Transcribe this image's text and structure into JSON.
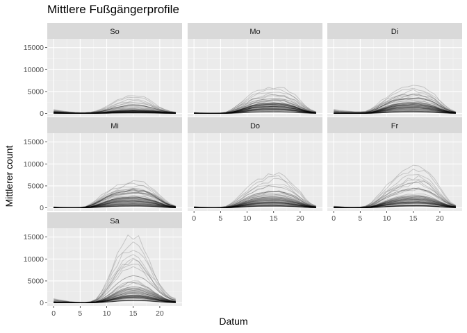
{
  "figure": {
    "title": "Mittlere Fußgängerprofile",
    "xlabel": "Datum",
    "ylabel": "Mittlerer count"
  },
  "chart_data": {
    "type": "line",
    "title": "Mittlere Fußgängerprofile",
    "xlabel": "Datum",
    "ylabel": "Mittlerer count",
    "xlim": [
      -1.2,
      24.2
    ],
    "ylim": [
      -700,
      17000
    ],
    "x_ticks": [
      0,
      5,
      10,
      15,
      20
    ],
    "y_ticks": [
      0,
      5000,
      10000,
      15000
    ],
    "y_tick_labels": [
      "0",
      "5000",
      "10000",
      "15000"
    ],
    "grid": true,
    "facet_layout": "3 columns",
    "x_hours": [
      0,
      1,
      2,
      3,
      4,
      5,
      6,
      7,
      8,
      9,
      10,
      11,
      12,
      13,
      14,
      15,
      16,
      17,
      18,
      19,
      20,
      21,
      22,
      23
    ],
    "panels": [
      {
        "name": "So",
        "median": [
          200,
          150,
          100,
          60,
          30,
          20,
          30,
          50,
          100,
          180,
          280,
          380,
          470,
          550,
          600,
          620,
          600,
          560,
          500,
          420,
          330,
          230,
          150,
          90
        ],
        "p90": [
          420,
          330,
          260,
          180,
          120,
          90,
          100,
          150,
          280,
          450,
          650,
          850,
          1050,
          1200,
          1300,
          1350,
          1300,
          1200,
          1050,
          850,
          650,
          450,
          300,
          200
        ],
        "max": [
          900,
          700,
          500,
          350,
          250,
          200,
          220,
          300,
          600,
          1000,
          1600,
          2400,
          3000,
          3600,
          4000,
          4200,
          4100,
          3700,
          3000,
          2200,
          1500,
          900,
          500,
          300
        ]
      },
      {
        "name": "Mo",
        "median": [
          60,
          40,
          30,
          20,
          20,
          30,
          70,
          200,
          450,
          750,
          1050,
          1350,
          1550,
          1650,
          1700,
          1720,
          1700,
          1600,
          1400,
          1150,
          800,
          500,
          250,
          120
        ],
        "p90": [
          120,
          80,
          60,
          40,
          40,
          60,
          150,
          500,
          1000,
          1600,
          2200,
          2700,
          3000,
          3200,
          3300,
          3400,
          3350,
          3200,
          2900,
          2400,
          1700,
          1000,
          500,
          220
        ],
        "max": [
          250,
          150,
          100,
          80,
          80,
          120,
          300,
          900,
          1800,
          2800,
          3700,
          4500,
          5100,
          5500,
          5800,
          6000,
          5900,
          5600,
          5000,
          4200,
          3000,
          1800,
          900,
          400
        ]
      },
      {
        "name": "Di",
        "median": [
          60,
          40,
          30,
          20,
          20,
          30,
          70,
          200,
          450,
          750,
          1050,
          1350,
          1550,
          1650,
          1700,
          1720,
          1700,
          1600,
          1400,
          1150,
          800,
          500,
          250,
          120
        ],
        "p90": [
          130,
          90,
          60,
          40,
          40,
          60,
          150,
          500,
          1000,
          1650,
          2300,
          2800,
          3100,
          3300,
          3400,
          3500,
          3450,
          3300,
          3000,
          2500,
          1800,
          1050,
          520,
          230
        ],
        "max": [
          1000,
          700,
          600,
          500,
          400,
          400,
          500,
          1000,
          1900,
          2900,
          3800,
          4600,
          5200,
          5600,
          5900,
          6200,
          6100,
          5800,
          5200,
          4300,
          3100,
          1800,
          900,
          400
        ]
      },
      {
        "name": "Mi",
        "median": [
          60,
          40,
          30,
          20,
          20,
          30,
          70,
          200,
          450,
          750,
          1050,
          1350,
          1550,
          1650,
          1700,
          1720,
          1700,
          1600,
          1400,
          1150,
          800,
          500,
          250,
          120
        ],
        "p90": [
          130,
          90,
          60,
          40,
          40,
          60,
          150,
          500,
          1000,
          1650,
          2300,
          2800,
          3100,
          3300,
          3400,
          3500,
          3450,
          3300,
          3000,
          2500,
          1800,
          1050,
          520,
          230
        ],
        "max": [
          250,
          150,
          100,
          80,
          80,
          120,
          300,
          900,
          1800,
          2800,
          3700,
          4500,
          5100,
          5500,
          5800,
          6100,
          6000,
          5700,
          5100,
          4200,
          3000,
          1800,
          900,
          400
        ]
      },
      {
        "name": "Do",
        "median": [
          60,
          40,
          30,
          20,
          20,
          30,
          70,
          200,
          450,
          750,
          1100,
          1400,
          1600,
          1700,
          1750,
          1780,
          1750,
          1650,
          1450,
          1200,
          850,
          520,
          260,
          130
        ],
        "p90": [
          140,
          90,
          60,
          40,
          40,
          60,
          150,
          500,
          1050,
          1700,
          2400,
          2900,
          3300,
          3500,
          3600,
          3700,
          3650,
          3500,
          3200,
          2700,
          1950,
          1150,
          560,
          250
        ],
        "max": [
          300,
          200,
          150,
          100,
          100,
          150,
          350,
          1000,
          2000,
          3200,
          4400,
          5500,
          6300,
          6900,
          7400,
          7800,
          7700,
          7200,
          6300,
          5100,
          3600,
          2100,
          1000,
          450
        ]
      },
      {
        "name": "Fr",
        "median": [
          80,
          50,
          40,
          30,
          30,
          40,
          80,
          220,
          480,
          800,
          1150,
          1450,
          1700,
          1850,
          1950,
          2000,
          2000,
          1900,
          1700,
          1400,
          1000,
          650,
          350,
          180
        ],
        "p90": [
          180,
          120,
          80,
          60,
          60,
          80,
          180,
          550,
          1150,
          1850,
          2600,
          3200,
          3700,
          4000,
          4200,
          4400,
          4350,
          4100,
          3700,
          3100,
          2300,
          1450,
          750,
          350
        ],
        "max": [
          400,
          300,
          200,
          150,
          150,
          200,
          400,
          1100,
          2300,
          3700,
          5100,
          6300,
          7400,
          8200,
          8900,
          9500,
          9800,
          9300,
          8000,
          6300,
          4500,
          2700,
          1300,
          600
        ]
      },
      {
        "name": "Sa",
        "median": [
          150,
          110,
          80,
          50,
          30,
          20,
          30,
          80,
          200,
          450,
          850,
          1350,
          1850,
          2250,
          2500,
          2600,
          2550,
          2350,
          2000,
          1550,
          1050,
          650,
          380,
          220
        ],
        "p90": [
          350,
          260,
          180,
          120,
          80,
          60,
          70,
          150,
          450,
          1100,
          2100,
          3300,
          4400,
          5300,
          5900,
          6200,
          6000,
          5500,
          4600,
          3500,
          2400,
          1500,
          900,
          500
        ],
        "max": [
          1000,
          700,
          500,
          300,
          200,
          150,
          150,
          300,
          900,
          2500,
          5000,
          8000,
          11000,
          13500,
          14800,
          15200,
          14500,
          12500,
          9800,
          7000,
          4500,
          2600,
          1500,
          900
        ]
      }
    ]
  }
}
